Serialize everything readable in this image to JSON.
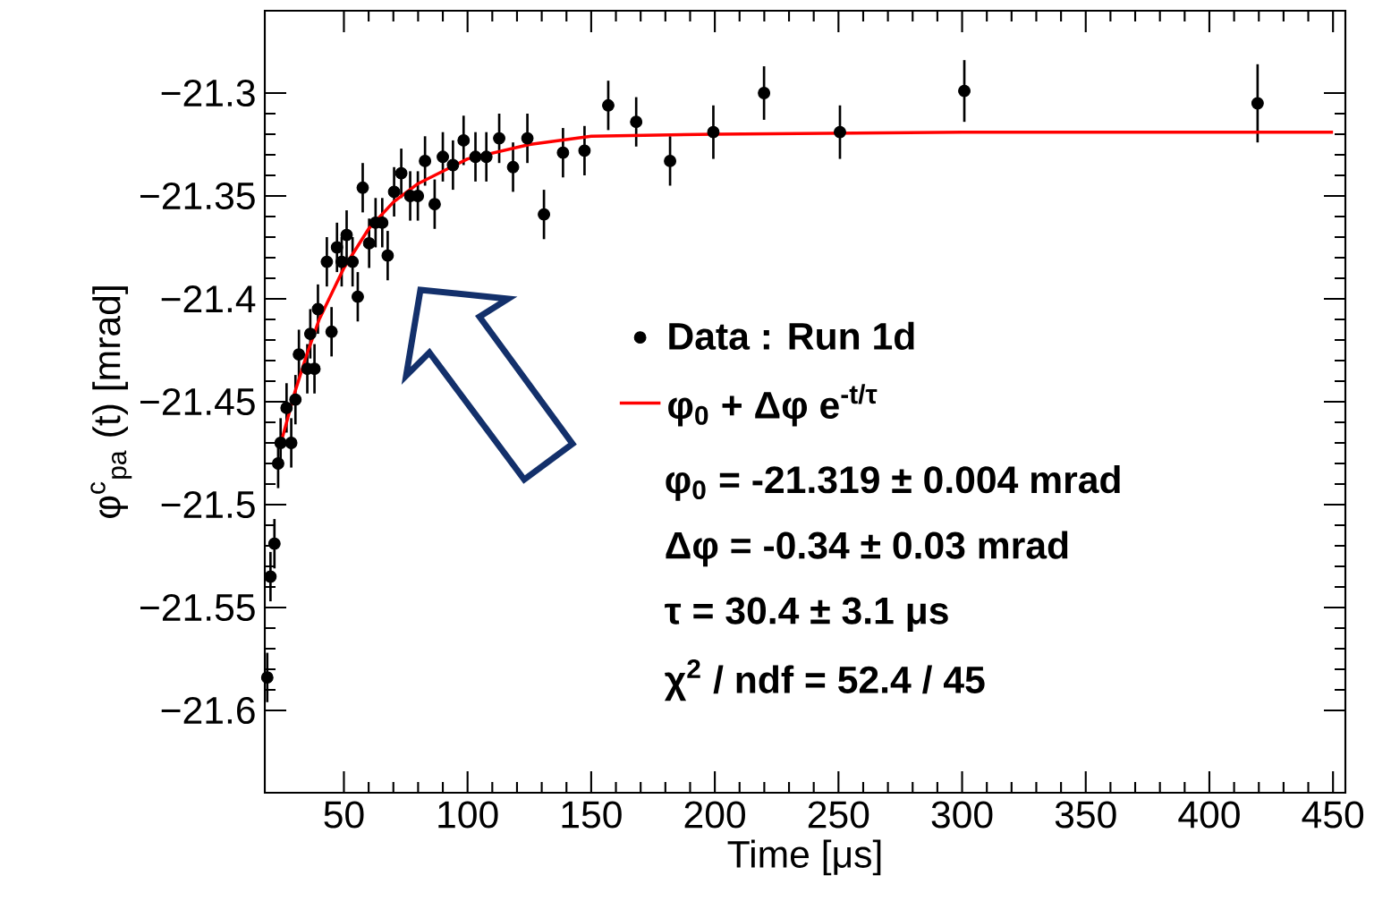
{
  "chart_data": {
    "type": "scatter",
    "xlabel": "Time [μs]",
    "ylabel": "φ$^{c}$$_{pa}$ (t) [mrad]",
    "xlim": [
      18,
      455
    ],
    "ylim": [
      -21.64,
      -21.26
    ],
    "xticks": [
      50,
      100,
      150,
      200,
      250,
      300,
      350,
      400,
      450
    ],
    "yticks": [
      {
        "value": -21.6,
        "label": "−21.6"
      },
      {
        "value": -21.55,
        "label": "−21.55"
      },
      {
        "value": -21.5,
        "label": "−21.5"
      },
      {
        "value": -21.45,
        "label": "−21.45"
      },
      {
        "value": -21.4,
        "label": "−21.4"
      },
      {
        "value": -21.35,
        "label": "−21.35"
      },
      {
        "value": -21.3,
        "label": "−21.3"
      }
    ],
    "marker": "circle",
    "legend": "right",
    "grid": false,
    "series": [
      {
        "name": "Data : Run 1d",
        "type": "scatter",
        "color": "#000000",
        "x": [
          19.0,
          20.3,
          21.9,
          23.4,
          24.4,
          26.8,
          28.7,
          30.4,
          31.8,
          35.2,
          36.4,
          38.1,
          39.5,
          43.1,
          45.0,
          47.2,
          49.1,
          51.1,
          53.5,
          55.6,
          57.6,
          60.2,
          62.8,
          65.5,
          67.7,
          70.3,
          73.2,
          76.8,
          79.9,
          82.8,
          86.7,
          90.0,
          94.1,
          98.4,
          103.2,
          107.6,
          112.8,
          118.4,
          124.2,
          130.9,
          138.6,
          147.3,
          156.9,
          168.2,
          181.9,
          199.4,
          219.9,
          250.6,
          300.9,
          419.5
        ],
        "values": [
          -21.584,
          -21.535,
          -21.519,
          -21.48,
          -21.47,
          -21.453,
          -21.47,
          -21.449,
          -21.427,
          -21.434,
          -21.417,
          -21.434,
          -21.405,
          -21.382,
          -21.416,
          -21.375,
          -21.382,
          -21.369,
          -21.382,
          -21.399,
          -21.346,
          -21.373,
          -21.363,
          -21.363,
          -21.379,
          -21.348,
          -21.339,
          -21.35,
          -21.35,
          -21.333,
          -21.354,
          -21.331,
          -21.335,
          -21.323,
          -21.331,
          -21.331,
          -21.322,
          -21.336,
          -21.322,
          -21.359,
          -21.329,
          -21.328,
          -21.306,
          -21.314,
          -21.333,
          -21.319,
          -21.3,
          -21.319,
          -21.299,
          -21.305
        ],
        "errors": [
          0.012,
          0.012,
          0.012,
          0.012,
          0.012,
          0.012,
          0.012,
          0.012,
          0.012,
          0.012,
          0.012,
          0.012,
          0.012,
          0.012,
          0.012,
          0.012,
          0.012,
          0.012,
          0.012,
          0.012,
          0.012,
          0.012,
          0.012,
          0.012,
          0.012,
          0.012,
          0.012,
          0.012,
          0.012,
          0.012,
          0.012,
          0.012,
          0.012,
          0.012,
          0.012,
          0.012,
          0.012,
          0.012,
          0.012,
          0.012,
          0.012,
          0.012,
          0.012,
          0.012,
          0.012,
          0.013,
          0.013,
          0.013,
          0.015,
          0.019
        ]
      },
      {
        "name": "φ$_{0}$ + Δφ e$^{-t/τ}$",
        "type": "line",
        "marker": "none",
        "color": "#ff0000",
        "x": [
          25,
          30,
          35,
          40,
          50,
          60,
          70,
          80,
          100,
          125,
          150,
          200,
          300,
          450
        ],
        "values": [
          -21.468,
          -21.446,
          -21.427,
          -21.41,
          -21.385,
          -21.366,
          -21.353,
          -21.344,
          -21.332,
          -21.325,
          -21.321,
          -21.32,
          -21.319,
          -21.319
        ]
      }
    ],
    "annotations": [
      "φ$_{0}$ = -21.319 ± 0.004 mrad",
      "Δφ = -0.34 ± 0.03 mrad",
      "τ = 30.4 ± 3.1 μs",
      "χ$^{2}$ / ndf = 52.4 / 45"
    ]
  }
}
